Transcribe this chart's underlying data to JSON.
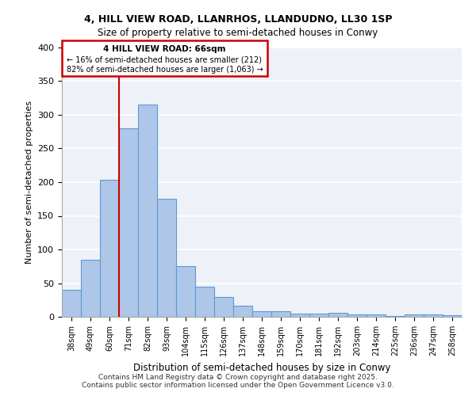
{
  "title1": "4, HILL VIEW ROAD, LLANRHOS, LLANDUDNO, LL30 1SP",
  "title2": "Size of property relative to semi-detached houses in Conwy",
  "xlabel": "Distribution of semi-detached houses by size in Conwy",
  "ylabel": "Number of semi-detached properties",
  "categories": [
    "38sqm",
    "49sqm",
    "60sqm",
    "71sqm",
    "82sqm",
    "93sqm",
    "104sqm",
    "115sqm",
    "126sqm",
    "137sqm",
    "148sqm",
    "159sqm",
    "170sqm",
    "181sqm",
    "192sqm",
    "203sqm",
    "214sqm",
    "225sqm",
    "236sqm",
    "247sqm",
    "258sqm"
  ],
  "values": [
    40,
    85,
    203,
    280,
    315,
    175,
    75,
    45,
    30,
    17,
    8,
    8,
    5,
    5,
    6,
    4,
    3,
    1,
    3,
    3,
    2
  ],
  "bar_color": "#aec6e8",
  "bar_edge_color": "#5b9bd5",
  "background_color": "#eef2f8",
  "grid_color": "#ffffff",
  "annotation_box_color": "#cc0000",
  "annotation_line_color": "#cc0000",
  "property_line_x": 2.5,
  "annotation_text1": "4 HILL VIEW ROAD: 66sqm",
  "annotation_text2": "← 16% of semi-detached houses are smaller (212)",
  "annotation_text3": "82% of semi-detached houses are larger (1,063) →",
  "footer1": "Contains HM Land Registry data © Crown copyright and database right 2025.",
  "footer2": "Contains public sector information licensed under the Open Government Licence v3.0.",
  "ylim": [
    0,
    400
  ],
  "yticks": [
    0,
    50,
    100,
    150,
    200,
    250,
    300,
    350,
    400
  ]
}
